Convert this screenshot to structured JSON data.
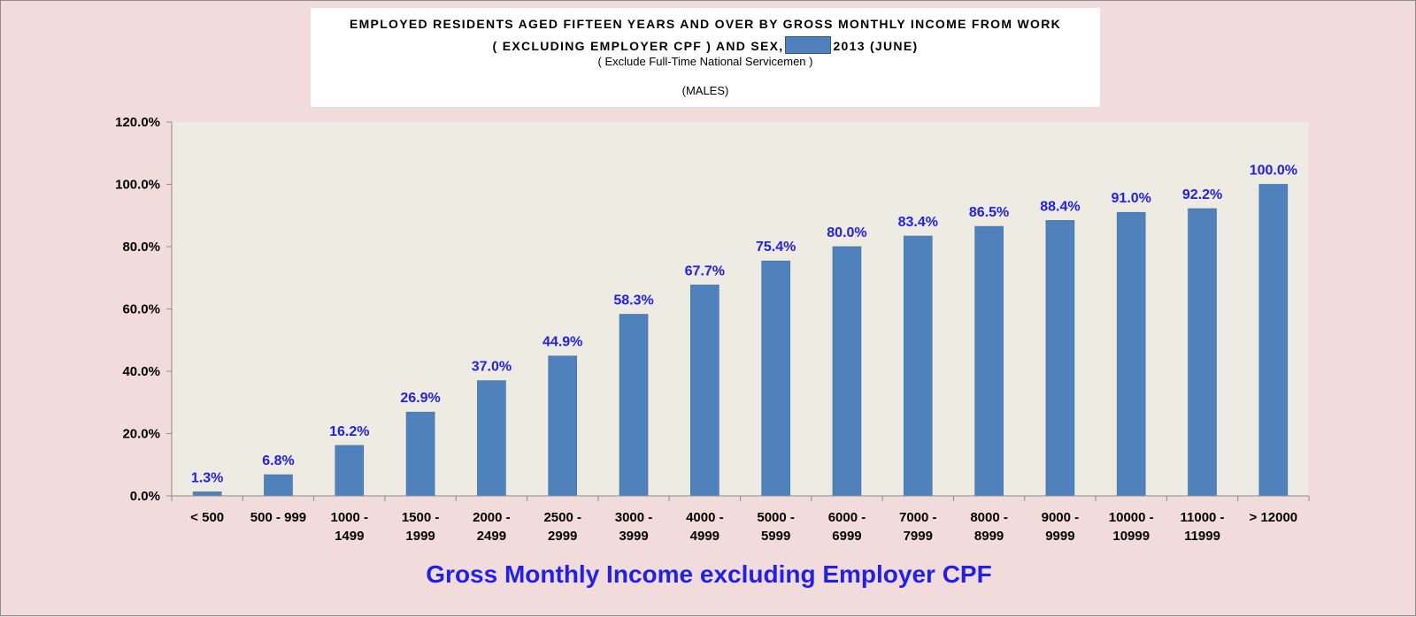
{
  "title": {
    "line1": "EMPLOYED RESIDENTS AGED FIFTEEN YEARS AND OVER BY GROSS MONTHLY INCOME FROM WORK",
    "line2_prefix": "( EXCLUDING EMPLOYER CPF ) AND SEX,",
    "line2_suffix": "2013 (JUNE)",
    "line3": "( Exclude Full-Time National Servicemen )",
    "line4": "(MALES)"
  },
  "colors": {
    "bar": "#4f81bd",
    "data_label": "#1f1ff0",
    "plot_bg": "#eeebe2",
    "page_bg": "#f2dcdb"
  },
  "chart_data": {
    "type": "bar",
    "title": "EMPLOYED RESIDENTS AGED FIFTEEN YEARS AND OVER BY GROSS MONTHLY INCOME FROM WORK ( EXCLUDING EMPLOYER CPF ) AND SEX, 2013 (JUNE)",
    "subtitle": "(MALES)",
    "xlabel": "Gross Monthly Income excluding Employer CPF",
    "ylabel": "",
    "categories": [
      [
        "< 500"
      ],
      [
        "500 - 999"
      ],
      [
        "1000 -",
        "1499"
      ],
      [
        "1500 -",
        "1999"
      ],
      [
        "2000 -",
        "2499"
      ],
      [
        "2500 -",
        "2999"
      ],
      [
        "3000 -",
        "3999"
      ],
      [
        "4000 -",
        "4999"
      ],
      [
        "5000 -",
        "5999"
      ],
      [
        "6000 -",
        "6999"
      ],
      [
        "7000 -",
        "7999"
      ],
      [
        "8000 -",
        "8999"
      ],
      [
        "9000 -",
        "9999"
      ],
      [
        "10000 -",
        "10999"
      ],
      [
        "11000 -",
        "11999"
      ],
      [
        "> 12000"
      ]
    ],
    "values": [
      1.3,
      6.8,
      16.2,
      26.9,
      37.0,
      44.9,
      58.3,
      67.7,
      75.4,
      80.0,
      83.4,
      86.5,
      88.4,
      91.0,
      92.2,
      100.0
    ],
    "data_labels": [
      "1.3%",
      "6.8%",
      "16.2%",
      "26.9%",
      "37.0%",
      "44.9%",
      "58.3%",
      "67.7%",
      "75.4%",
      "80.0%",
      "83.4%",
      "86.5%",
      "88.4%",
      "91.0%",
      "92.2%",
      "100.0%"
    ],
    "ylim": [
      0,
      120
    ],
    "yticks": [
      0,
      20,
      40,
      60,
      80,
      100,
      120
    ],
    "ytick_labels": [
      "0.0%",
      "20.0%",
      "40.0%",
      "60.0%",
      "80.0%",
      "100.0%",
      "120.0%"
    ],
    "grid": false,
    "legend": "none"
  }
}
